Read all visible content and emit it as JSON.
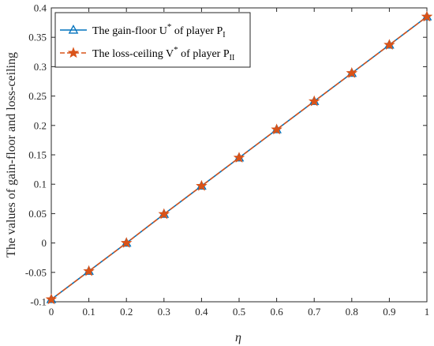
{
  "chart_data": {
    "type": "line",
    "xlabel": "η",
    "ylabel": "The values of gain-floor and loss-ceiling",
    "xlim": [
      0,
      1
    ],
    "ylim": [
      -0.1,
      0.4
    ],
    "xticks": [
      "0",
      "0.1",
      "0.2",
      "0.3",
      "0.4",
      "0.5",
      "0.6",
      "0.7",
      "0.8",
      "0.9",
      "1"
    ],
    "yticks": [
      "-0.1",
      "-0.05",
      "0",
      "0.05",
      "0.1",
      "0.15",
      "0.2",
      "0.25",
      "0.3",
      "0.35",
      "0.4"
    ],
    "grid": false,
    "legend_position": "top-left",
    "x": [
      0,
      0.1,
      0.2,
      0.3,
      0.4,
      0.5,
      0.6,
      0.7,
      0.8,
      0.9,
      1.0
    ],
    "series": [
      {
        "name": "The gain-floor U* of player PI",
        "legend_parts": {
          "main": "The gain-floor U",
          "sup": "*",
          "mid": " of player P",
          "sub": "I"
        },
        "color": "#0072BD",
        "marker": "triangle",
        "values": [
          -0.096,
          -0.048,
          0.0,
          0.049,
          0.097,
          0.145,
          0.193,
          0.241,
          0.289,
          0.337,
          0.385
        ]
      },
      {
        "name": "The loss-ceiling V* of player PII",
        "legend_parts": {
          "main": "The loss-ceiling V",
          "sup": "*",
          "mid": " of player P",
          "sub": "II"
        },
        "color": "#D95319",
        "marker": "star",
        "values": [
          -0.096,
          -0.048,
          0.0,
          0.049,
          0.097,
          0.145,
          0.193,
          0.241,
          0.289,
          0.337,
          0.385
        ]
      }
    ]
  }
}
